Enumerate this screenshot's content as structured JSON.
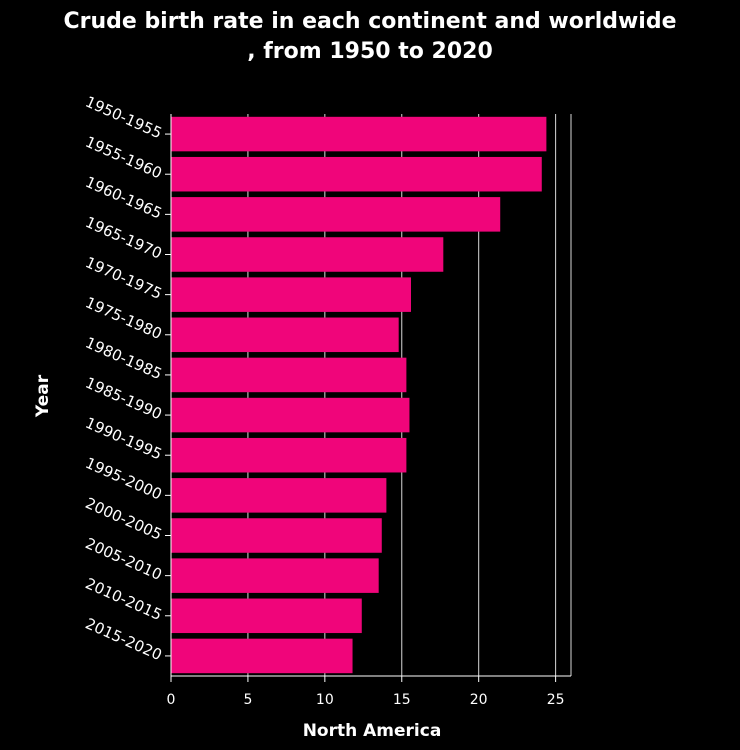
{
  "chart_data": {
    "type": "bar",
    "orientation": "horizontal",
    "title_lines": [
      "Crude birth rate in each continent and worldwide",
      ", from 1950 to 2020"
    ],
    "xlabel": "North America",
    "ylabel": "Year",
    "categories": [
      "1950-1955",
      "1955-1960",
      "1960-1965",
      "1965-1970",
      "1970-1975",
      "1975-1980",
      "1980-1985",
      "1985-1990",
      "1990-1995",
      "1995-2000",
      "2000-2005",
      "2005-2010",
      "2010-2015",
      "2015-2020"
    ],
    "values": [
      24.4,
      24.1,
      21.4,
      17.7,
      15.6,
      14.8,
      15.3,
      15.5,
      15.3,
      14.0,
      13.7,
      13.5,
      12.4,
      11.8
    ],
    "xlim": [
      0,
      26
    ],
    "xticks": [
      0,
      5,
      10,
      15,
      20,
      25
    ],
    "grid": true,
    "colors": {
      "bar": "#f0057a",
      "background": "#000000",
      "text": "#ffffff",
      "grid": "#ffffff"
    }
  }
}
